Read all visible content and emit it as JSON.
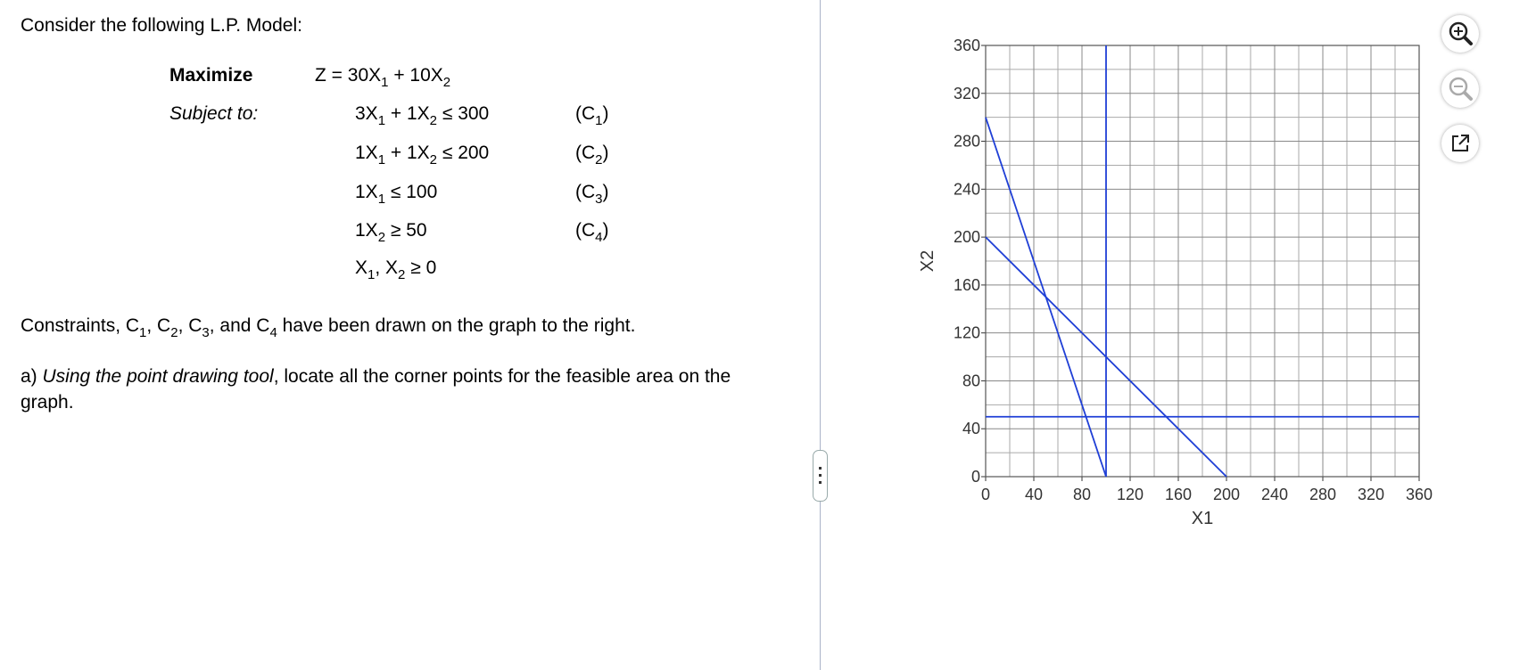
{
  "question": {
    "intro": "Consider the following L.P. Model:",
    "model": {
      "maximize_label": "Maximize",
      "subject_to_label": "Subject to:",
      "objective": [
        "Z = 30X",
        "1",
        " + 10X",
        "2"
      ],
      "constraints": [
        {
          "expr": [
            "3X",
            "1",
            " + 1X",
            "2",
            " ≤ 300"
          ],
          "tag": [
            "(C",
            "1",
            ")"
          ]
        },
        {
          "expr": [
            "1X",
            "1",
            " + 1X",
            "2",
            " ≤ 200"
          ],
          "tag": [
            "(C",
            "2",
            ")"
          ]
        },
        {
          "expr": [
            "1X",
            "1",
            " ≤ 100"
          ],
          "tag": [
            "(C",
            "3",
            ")"
          ]
        },
        {
          "expr": [
            "1X",
            "2",
            " ≥ 50"
          ],
          "tag": [
            "(C",
            "4",
            ")"
          ]
        },
        {
          "expr": [
            "X",
            "1",
            ", X",
            "2",
            " ≥ 0"
          ]
        }
      ]
    },
    "note": [
      "Constraints, C",
      "1",
      ", C",
      "2",
      ", C",
      "3",
      ", and  C",
      "4",
      " have been drawn on the graph to the right."
    ],
    "part_a": {
      "label": "a) ",
      "italic": "Using the point drawing tool",
      "rest": ", locate all the corner points for the feasible area on the graph."
    }
  },
  "chart_data": {
    "type": "line",
    "xlabel": "X1",
    "ylabel": "X2",
    "xlim": [
      0,
      360
    ],
    "ylim": [
      0,
      360
    ],
    "xticks": [
      0,
      40,
      80,
      120,
      160,
      200,
      240,
      280,
      320,
      360
    ],
    "yticks": [
      0,
      40,
      80,
      120,
      160,
      200,
      240,
      280,
      320,
      360
    ],
    "grid": true,
    "series": [
      {
        "color": "#1f3fd6",
        "x": [
          0,
          100
        ],
        "values": [
          300,
          0
        ]
      },
      {
        "color": "#1f3fd6",
        "x": [
          0,
          200
        ],
        "values": [
          200,
          0
        ]
      },
      {
        "color": "#1f3fd6",
        "x": [
          100,
          100
        ],
        "values": [
          0,
          360
        ]
      },
      {
        "color": "#1f3fd6",
        "x": [
          0,
          360
        ],
        "values": [
          50,
          50
        ]
      }
    ]
  }
}
